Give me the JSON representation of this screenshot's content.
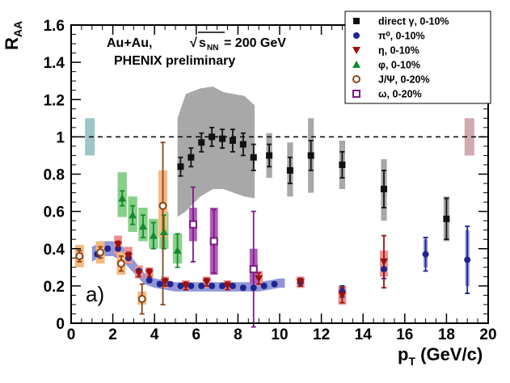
{
  "chart_data": {
    "type": "scatter",
    "xlabel": "p",
    "xlabel_sub": "T",
    "xlabel_unit": " (GeV/c)",
    "ylabel": "R",
    "ylabel_sub": "AA",
    "xlim": [
      0,
      20
    ],
    "ylim": [
      0,
      1.6
    ],
    "xticks": [
      0,
      2,
      4,
      6,
      8,
      10,
      12,
      14,
      16,
      18,
      20
    ],
    "yticks": [
      0,
      0.2,
      0.4,
      0.6,
      0.8,
      1,
      1.2,
      1.4,
      1.6
    ],
    "xtick_labels": [
      "0",
      "2",
      "4",
      "6",
      "8",
      "10",
      "12",
      "14",
      "16",
      "18",
      "20"
    ],
    "ytick_labels": [
      "0",
      "0.2",
      "0.4",
      "0.6",
      "0.8",
      "1",
      "1.2",
      "1.4",
      "1.6"
    ],
    "reference_line": 1,
    "annotations": {
      "collision_prefix": "Au+Au, ",
      "sqrt": "s",
      "sqrt_sub": "NN",
      "energy": " = 200 GeV",
      "experiment": "PHENIX preliminary",
      "panel_label": "a)"
    },
    "norm_boxes": [
      {
        "x": 0.9,
        "low": 0.9,
        "high": 1.1,
        "color": "#9fc6c6"
      },
      {
        "x": 19.1,
        "low": 0.9,
        "high": 1.1,
        "color": "#d1a9b0"
      }
    ],
    "legend_position": "top-right",
    "series": [
      {
        "name": "direct γ, 0-10%",
        "marker": "square",
        "color": "#111111",
        "fill": "#111111",
        "syst_color": "#a8a8a8",
        "syst_width": 0.28,
        "band": {
          "x": [
            5.1,
            5.5,
            6.2,
            6.8,
            7.3,
            7.8,
            8.3,
            8.8
          ],
          "low": [
            0.57,
            0.6,
            0.68,
            0.72,
            0.72,
            0.7,
            0.68,
            0.67
          ],
          "high": [
            1.1,
            1.23,
            1.26,
            1.27,
            1.24,
            1.23,
            1.22,
            1.17
          ]
        },
        "points": [
          {
            "x": 5.25,
            "y": 0.84,
            "stat": 0.05
          },
          {
            "x": 5.75,
            "y": 0.89,
            "stat": 0.05
          },
          {
            "x": 6.25,
            "y": 0.97,
            "stat": 0.05
          },
          {
            "x": 6.75,
            "y": 1.0,
            "stat": 0.05
          },
          {
            "x": 7.25,
            "y": 0.99,
            "stat": 0.05
          },
          {
            "x": 7.75,
            "y": 0.98,
            "stat": 0.06
          },
          {
            "x": 8.25,
            "y": 0.96,
            "stat": 0.06
          },
          {
            "x": 8.75,
            "y": 0.89,
            "stat": 0.07
          },
          {
            "x": 9.5,
            "y": 0.9,
            "stat": 0.06,
            "syst": [
              0.78,
              1.02
            ]
          },
          {
            "x": 10.5,
            "y": 0.82,
            "stat": 0.07,
            "syst": [
              0.68,
              0.97
            ]
          },
          {
            "x": 11.5,
            "y": 0.9,
            "stat": 0.08,
            "syst": [
              0.7,
              1.1
            ]
          },
          {
            "x": 13.0,
            "y": 0.85,
            "stat": 0.07,
            "syst": [
              0.72,
              0.98
            ]
          },
          {
            "x": 15.0,
            "y": 0.72,
            "stat": 0.1,
            "syst": [
              0.55,
              0.88
            ]
          },
          {
            "x": 18.0,
            "y": 0.56,
            "stat": 0.11,
            "syst": [
              0.44,
              0.68
            ]
          }
        ]
      },
      {
        "name": "π⁰, 0-10%",
        "marker": "circle",
        "color": "#1f2590",
        "fill": "#1f2590",
        "syst_color": "#8f97d8",
        "syst_width": 0.2,
        "band": {
          "x": [
            1.0,
            1.5,
            2.0,
            2.5,
            3.0,
            3.5,
            4.0,
            4.5,
            5.0,
            5.5,
            6.0,
            6.5,
            7.0,
            7.5,
            8.0,
            8.5,
            9.0,
            9.5,
            10.0,
            10.25
          ],
          "low": [
            0.33,
            0.36,
            0.36,
            0.33,
            0.27,
            0.21,
            0.19,
            0.18,
            0.17,
            0.17,
            0.17,
            0.17,
            0.17,
            0.17,
            0.17,
            0.17,
            0.17,
            0.18,
            0.19,
            0.19
          ],
          "high": [
            0.41,
            0.44,
            0.44,
            0.41,
            0.34,
            0.27,
            0.24,
            0.23,
            0.22,
            0.22,
            0.22,
            0.22,
            0.22,
            0.22,
            0.22,
            0.22,
            0.22,
            0.23,
            0.24,
            0.24
          ]
        },
        "points": [
          {
            "x": 1.25,
            "y": 0.37,
            "stat": 0.01
          },
          {
            "x": 1.75,
            "y": 0.4,
            "stat": 0.01
          },
          {
            "x": 2.25,
            "y": 0.4,
            "stat": 0.01
          },
          {
            "x": 2.75,
            "y": 0.35,
            "stat": 0.01
          },
          {
            "x": 3.25,
            "y": 0.28,
            "stat": 0.01
          },
          {
            "x": 3.75,
            "y": 0.23,
            "stat": 0.01
          },
          {
            "x": 4.25,
            "y": 0.21,
            "stat": 0.01
          },
          {
            "x": 4.75,
            "y": 0.21,
            "stat": 0.01
          },
          {
            "x": 5.25,
            "y": 0.2,
            "stat": 0.01
          },
          {
            "x": 5.75,
            "y": 0.2,
            "stat": 0.01
          },
          {
            "x": 6.25,
            "y": 0.2,
            "stat": 0.01
          },
          {
            "x": 6.75,
            "y": 0.2,
            "stat": 0.01
          },
          {
            "x": 7.25,
            "y": 0.2,
            "stat": 0.01
          },
          {
            "x": 7.75,
            "y": 0.2,
            "stat": 0.01
          },
          {
            "x": 8.25,
            "y": 0.19,
            "stat": 0.01
          },
          {
            "x": 8.75,
            "y": 0.19,
            "stat": 0.01
          },
          {
            "x": 9.25,
            "y": 0.2,
            "stat": 0.01
          },
          {
            "x": 9.75,
            "y": 0.21,
            "stat": 0.01
          },
          {
            "x": 11.0,
            "y": 0.22,
            "stat": 0.02,
            "syst": [
              0.19,
              0.25
            ]
          },
          {
            "x": 13.0,
            "y": 0.17,
            "stat": 0.03,
            "syst": [
              0.14,
              0.2
            ]
          },
          {
            "x": 15.0,
            "y": 0.29,
            "stat": 0.05,
            "syst": [
              0.25,
              0.34
            ]
          },
          {
            "x": 17.0,
            "y": 0.37,
            "stat": 0.09,
            "syst": [
              0.3,
              0.45
            ]
          },
          {
            "x": 19.0,
            "y": 0.34,
            "stat": 0.18,
            "syst": [
              0.2,
              0.5
            ]
          }
        ]
      },
      {
        "name": "η, 0-10%",
        "marker": "triangle-down",
        "color": "#991111",
        "fill": "#991111",
        "syst_color": "#ee9090",
        "syst_width": 0.38,
        "points": [
          {
            "x": 2.25,
            "y": 0.42,
            "stat": 0.02,
            "syst": [
              0.37,
              0.47
            ]
          },
          {
            "x": 2.75,
            "y": 0.36,
            "stat": 0.02,
            "syst": [
              0.32,
              0.41
            ]
          },
          {
            "x": 3.25,
            "y": 0.27,
            "stat": 0.02,
            "syst": [
              0.24,
              0.31
            ]
          },
          {
            "x": 3.75,
            "y": 0.27,
            "stat": 0.02,
            "syst": [
              0.24,
              0.3
            ]
          },
          {
            "x": 4.5,
            "y": 0.22,
            "stat": 0.02,
            "syst": [
              0.19,
              0.25
            ]
          },
          {
            "x": 5.5,
            "y": 0.2,
            "stat": 0.02,
            "syst": [
              0.18,
              0.23
            ]
          },
          {
            "x": 6.5,
            "y": 0.22,
            "stat": 0.02,
            "syst": [
              0.19,
              0.25
            ]
          },
          {
            "x": 7.5,
            "y": 0.2,
            "stat": 0.02,
            "syst": [
              0.18,
              0.23
            ]
          },
          {
            "x": 9.0,
            "y": 0.24,
            "stat": 0.03,
            "syst": [
              0.2,
              0.28
            ]
          },
          {
            "x": 11.0,
            "y": 0.22,
            "stat": 0.02,
            "syst": [
              0.19,
              0.25
            ]
          },
          {
            "x": 13.0,
            "y": 0.15,
            "stat": 0.04,
            "syst": [
              0.1,
              0.2
            ]
          },
          {
            "x": 15.0,
            "y": 0.33,
            "stat": 0.14,
            "syst": [
              0.25,
              0.39
            ]
          }
        ]
      },
      {
        "name": "φ, 0-10%",
        "marker": "triangle-up",
        "color": "#138a2e",
        "fill": "#138a2e",
        "syst_color": "#88d088",
        "syst_width": 0.44,
        "points": [
          {
            "x": 2.45,
            "y": 0.67,
            "stat": 0.04,
            "syst": [
              0.57,
              0.81
            ]
          },
          {
            "x": 2.95,
            "y": 0.58,
            "stat": 0.05,
            "syst": [
              0.49,
              0.68
            ]
          },
          {
            "x": 3.45,
            "y": 0.52,
            "stat": 0.06,
            "syst": [
              0.44,
              0.62
            ]
          },
          {
            "x": 3.95,
            "y": 0.47,
            "stat": 0.07,
            "syst": [
              0.4,
              0.56
            ]
          },
          {
            "x": 4.45,
            "y": 0.49,
            "stat": 0.09,
            "syst": [
              0.4,
              0.6
            ]
          },
          {
            "x": 5.1,
            "y": 0.39,
            "stat": 0.09,
            "syst": [
              0.32,
              0.48
            ]
          }
        ]
      },
      {
        "name": "J/Ψ, 0-20%",
        "marker": "circle-open",
        "color": "#8b4513",
        "fill": "#ffffff",
        "syst_color": "#f6b880",
        "syst_width": 0.42,
        "points": [
          {
            "x": 0.4,
            "y": 0.36,
            "stat": 0.03,
            "syst": [
              0.3,
              0.42
            ]
          },
          {
            "x": 1.4,
            "y": 0.38,
            "stat": 0.03,
            "syst": [
              0.32,
              0.44
            ]
          },
          {
            "x": 2.4,
            "y": 0.32,
            "stat": 0.04,
            "syst": [
              0.26,
              0.38
            ]
          },
          {
            "x": 3.4,
            "y": 0.13,
            "stat": 0.08,
            "syst": [
              0.1,
              0.17
            ]
          },
          {
            "x": 4.4,
            "y": 0.63,
            "stat": 0.34,
            "stat_low": 0.53,
            "syst": [
              0.46,
              0.82
            ]
          }
        ]
      },
      {
        "name": "ω, 0-20%",
        "marker": "square-open",
        "color": "#7d1a85",
        "fill": "#ffffff",
        "syst_color": "#b15bbd",
        "syst_width": 0.38,
        "points": [
          {
            "x": 5.85,
            "y": 0.53,
            "stat": 0.2,
            "syst": [
              0.44,
              0.62
            ]
          },
          {
            "x": 6.85,
            "y": 0.44,
            "stat": 0.17,
            "syst": [
              0.26,
              0.62
            ]
          },
          {
            "x": 8.75,
            "y": 0.29,
            "stat": 0.31,
            "syst": [
              0.21,
              0.4
            ]
          }
        ]
      }
    ]
  }
}
